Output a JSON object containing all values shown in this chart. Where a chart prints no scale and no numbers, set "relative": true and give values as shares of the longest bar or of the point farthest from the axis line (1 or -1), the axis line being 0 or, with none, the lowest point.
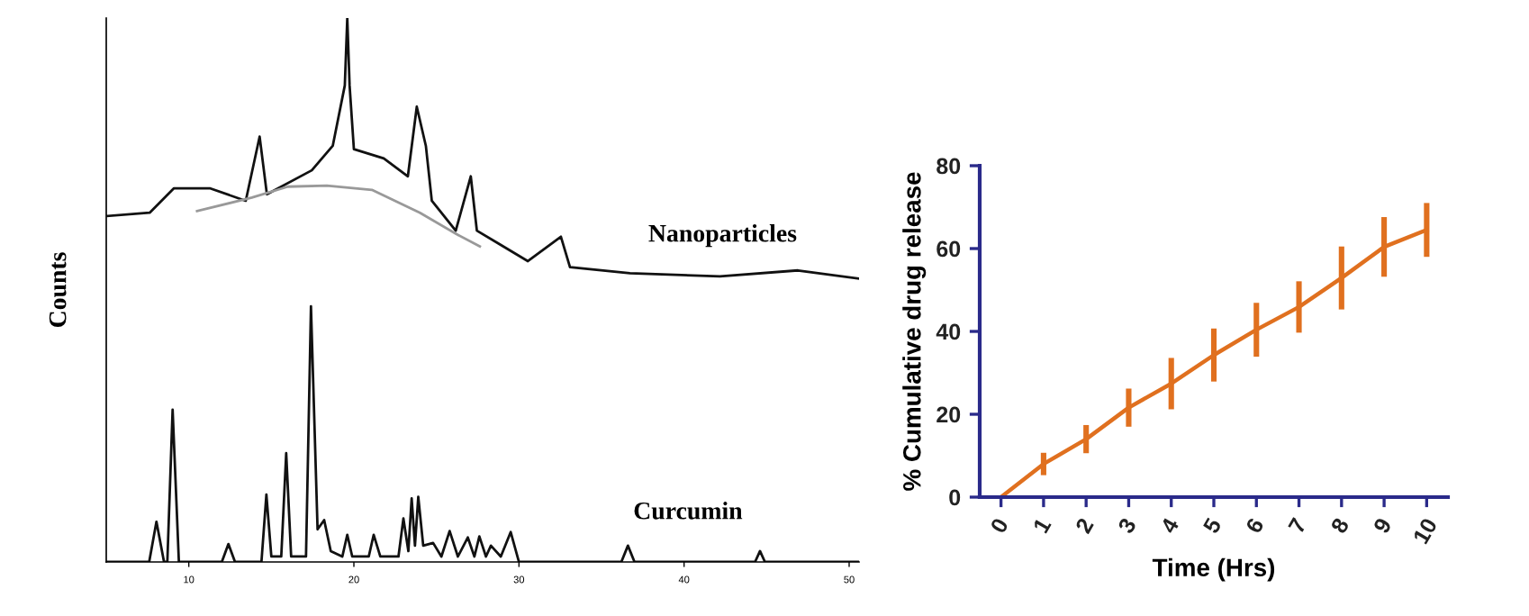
{
  "chart_data": [
    {
      "type": "line",
      "relative": true,
      "ylabel": "Counts",
      "xlim": [
        5,
        50.6
      ],
      "xticks": [
        10,
        20,
        30,
        40,
        50
      ],
      "grid": false,
      "legend": false,
      "series": [
        {
          "name": "Nanoparticles",
          "color": "#111111",
          "x": [
            5.09,
            7.63,
            9.1,
            11.27,
            13.45,
            14.29,
            14.73,
            17.45,
            18.72,
            19.45,
            19.6,
            19.74,
            20.0,
            21.81,
            23.27,
            23.81,
            24.36,
            24.72,
            26.17,
            27.08,
            27.45,
            28.72,
            30.54,
            32.54,
            33.09,
            36.72,
            42.17,
            46.9,
            50.6
          ],
          "values": [
            0.636,
            0.642,
            0.687,
            0.687,
            0.664,
            0.782,
            0.676,
            0.72,
            0.765,
            0.876,
            1.0,
            0.876,
            0.759,
            0.742,
            0.709,
            0.837,
            0.765,
            0.664,
            0.609,
            0.709,
            0.609,
            0.586,
            0.553,
            0.598,
            0.542,
            0.531,
            0.525,
            0.536,
            0.521
          ]
        },
        {
          "color": "#999999",
          "x": [
            10.5,
            13.82,
            16.0,
            18.36,
            21.09,
            24.0,
            26.2,
            27.63
          ],
          "values": [
            0.645,
            0.67,
            0.69,
            0.692,
            0.684,
            0.642,
            0.603,
            0.58
          ]
        },
        {
          "name": "Curcumin",
          "color": "#111111",
          "x": [
            5.0,
            7.6,
            8.04,
            8.5,
            8.7,
            9.02,
            9.4,
            12.0,
            12.4,
            12.8,
            14.4,
            14.7,
            15.0,
            15.6,
            15.9,
            16.2,
            17.1,
            17.4,
            17.8,
            18.2,
            18.6,
            19.3,
            19.6,
            19.9,
            20.9,
            21.2,
            21.6,
            22.7,
            23.0,
            23.3,
            23.5,
            23.7,
            23.9,
            24.2,
            24.8,
            25.3,
            25.8,
            26.3,
            26.9,
            27.3,
            27.6,
            28.0,
            28.3,
            28.9,
            29.5,
            30.0,
            36.2,
            36.6,
            37.0,
            44.3,
            44.6,
            44.9,
            50.6
          ],
          "values": [
            0,
            0,
            0.074,
            0,
            0,
            0.28,
            0,
            0,
            0.033,
            0,
            0,
            0.124,
            0.01,
            0.01,
            0.2,
            0.01,
            0.01,
            0.47,
            0.06,
            0.077,
            0.02,
            0.01,
            0.05,
            0.01,
            0.01,
            0.05,
            0.01,
            0.01,
            0.08,
            0.02,
            0.117,
            0.03,
            0.12,
            0.03,
            0.035,
            0.01,
            0.057,
            0.01,
            0.045,
            0.01,
            0.047,
            0.01,
            0.03,
            0.01,
            0.055,
            0,
            0,
            0.03,
            0,
            0,
            0.02,
            0,
            0
          ]
        }
      ]
    },
    {
      "type": "line",
      "x": [
        0,
        1,
        2,
        3,
        4,
        5,
        6,
        7,
        8,
        9,
        10
      ],
      "xlim": [
        -0.5,
        10.5
      ],
      "xticks": [
        0,
        1,
        2,
        3,
        4,
        5,
        6,
        7,
        8,
        9,
        10
      ],
      "ylim": [
        0,
        80
      ],
      "yticks": [
        0,
        20,
        40,
        60,
        80
      ],
      "xlabel": "Time (Hrs)",
      "ylabel": "% Cumulative drug release",
      "grid": false,
      "legend": false,
      "marker": "none",
      "line_style": "solid",
      "series": [
        {
          "color": "#e0701f",
          "values": [
            0,
            8,
            14,
            21.6,
            27.4,
            34.3,
            40.4,
            45.9,
            52.9,
            60.4,
            64.5
          ],
          "errors": [
            null,
            2.7,
            3.4,
            4.6,
            6.2,
            6.4,
            6.5,
            6.2,
            7.6,
            7.2,
            6.5
          ]
        }
      ]
    }
  ]
}
